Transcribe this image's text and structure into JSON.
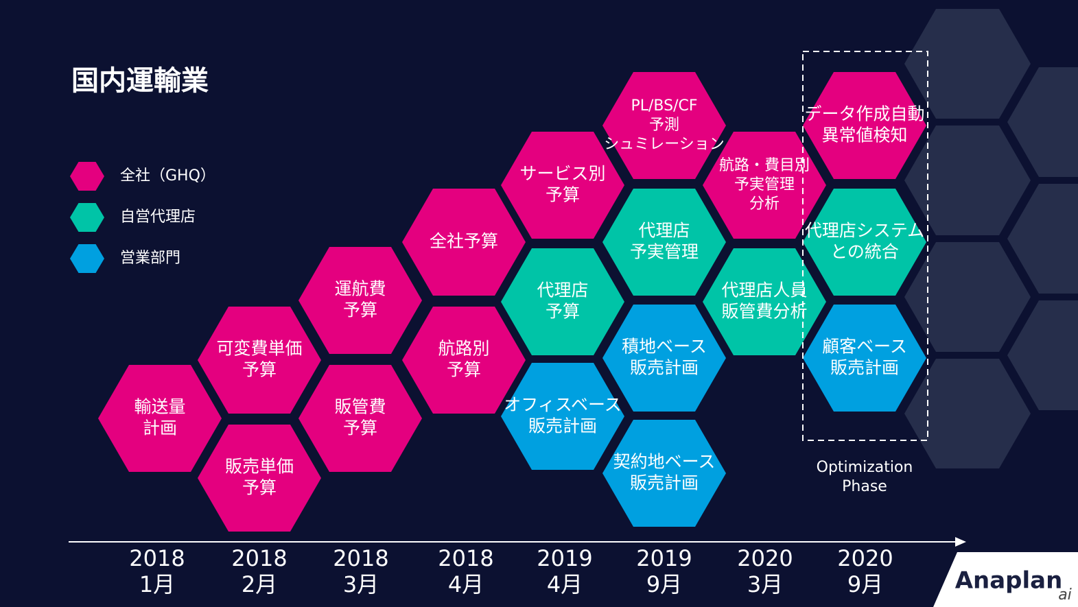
{
  "title": "国内運輸業",
  "legend": [
    {
      "label": "全社（GHQ）",
      "color": "#e4007f"
    },
    {
      "label": "自営代理店",
      "color": "#00c4a7"
    },
    {
      "label": "営業部門",
      "color": "#00a0e0"
    }
  ],
  "hexagons": [
    {
      "lines": [
        "輸送量",
        "計画"
      ],
      "color": "#e4007f"
    },
    {
      "lines": [
        "可変費単価",
        "予算"
      ],
      "color": "#e4007f"
    },
    {
      "lines": [
        "販売単価",
        "予算"
      ],
      "color": "#e4007f"
    },
    {
      "lines": [
        "運航費",
        "予算"
      ],
      "color": "#e4007f"
    },
    {
      "lines": [
        "販管費",
        "予算"
      ],
      "color": "#e4007f"
    },
    {
      "lines": [
        "全社予算"
      ],
      "color": "#e4007f"
    },
    {
      "lines": [
        "航路別",
        "予算"
      ],
      "color": "#e4007f"
    },
    {
      "lines": [
        "サービス別",
        "予算"
      ],
      "color": "#e4007f"
    },
    {
      "lines": [
        "代理店",
        "予算"
      ],
      "color": "#00c4a7"
    },
    {
      "lines": [
        "オフィスベース",
        "販売計画"
      ],
      "color": "#00a0e0"
    },
    {
      "lines": [
        "PL/BS/CF",
        "予測",
        "シュミレーション"
      ],
      "color": "#e4007f"
    },
    {
      "lines": [
        "代理店",
        "予実管理"
      ],
      "color": "#00c4a7"
    },
    {
      "lines": [
        "積地ベース",
        "販売計画"
      ],
      "color": "#00a0e0"
    },
    {
      "lines": [
        "契約地ベース",
        "販売計画"
      ],
      "color": "#00a0e0"
    },
    {
      "lines": [
        "航路・費目別",
        "予実管理",
        "分析"
      ],
      "color": "#e4007f"
    },
    {
      "lines": [
        "代理店人員",
        "販管費分析"
      ],
      "color": "#00c4a7"
    },
    {
      "lines": [
        "データ作成自動",
        "異常値検知"
      ],
      "color": "#e4007f"
    },
    {
      "lines": [
        "代理店システム",
        "との統合"
      ],
      "color": "#00c4a7"
    },
    {
      "lines": [
        "顧客ベース",
        "販売計画"
      ],
      "color": "#00a0e0"
    }
  ],
  "phase": {
    "lines": [
      "Optimization",
      "Phase"
    ]
  },
  "timeline": [
    {
      "year": "2018",
      "month": "1月"
    },
    {
      "year": "2018",
      "month": "2月"
    },
    {
      "year": "2018",
      "month": "3月"
    },
    {
      "year": "2018",
      "month": "4月"
    },
    {
      "year": "2019",
      "month": "4月"
    },
    {
      "year": "2019",
      "month": "9月"
    },
    {
      "year": "2020",
      "month": "3月"
    },
    {
      "year": "2020",
      "month": "9月"
    }
  ],
  "logo": {
    "name": "Anaplan",
    "watermark": "ai"
  }
}
